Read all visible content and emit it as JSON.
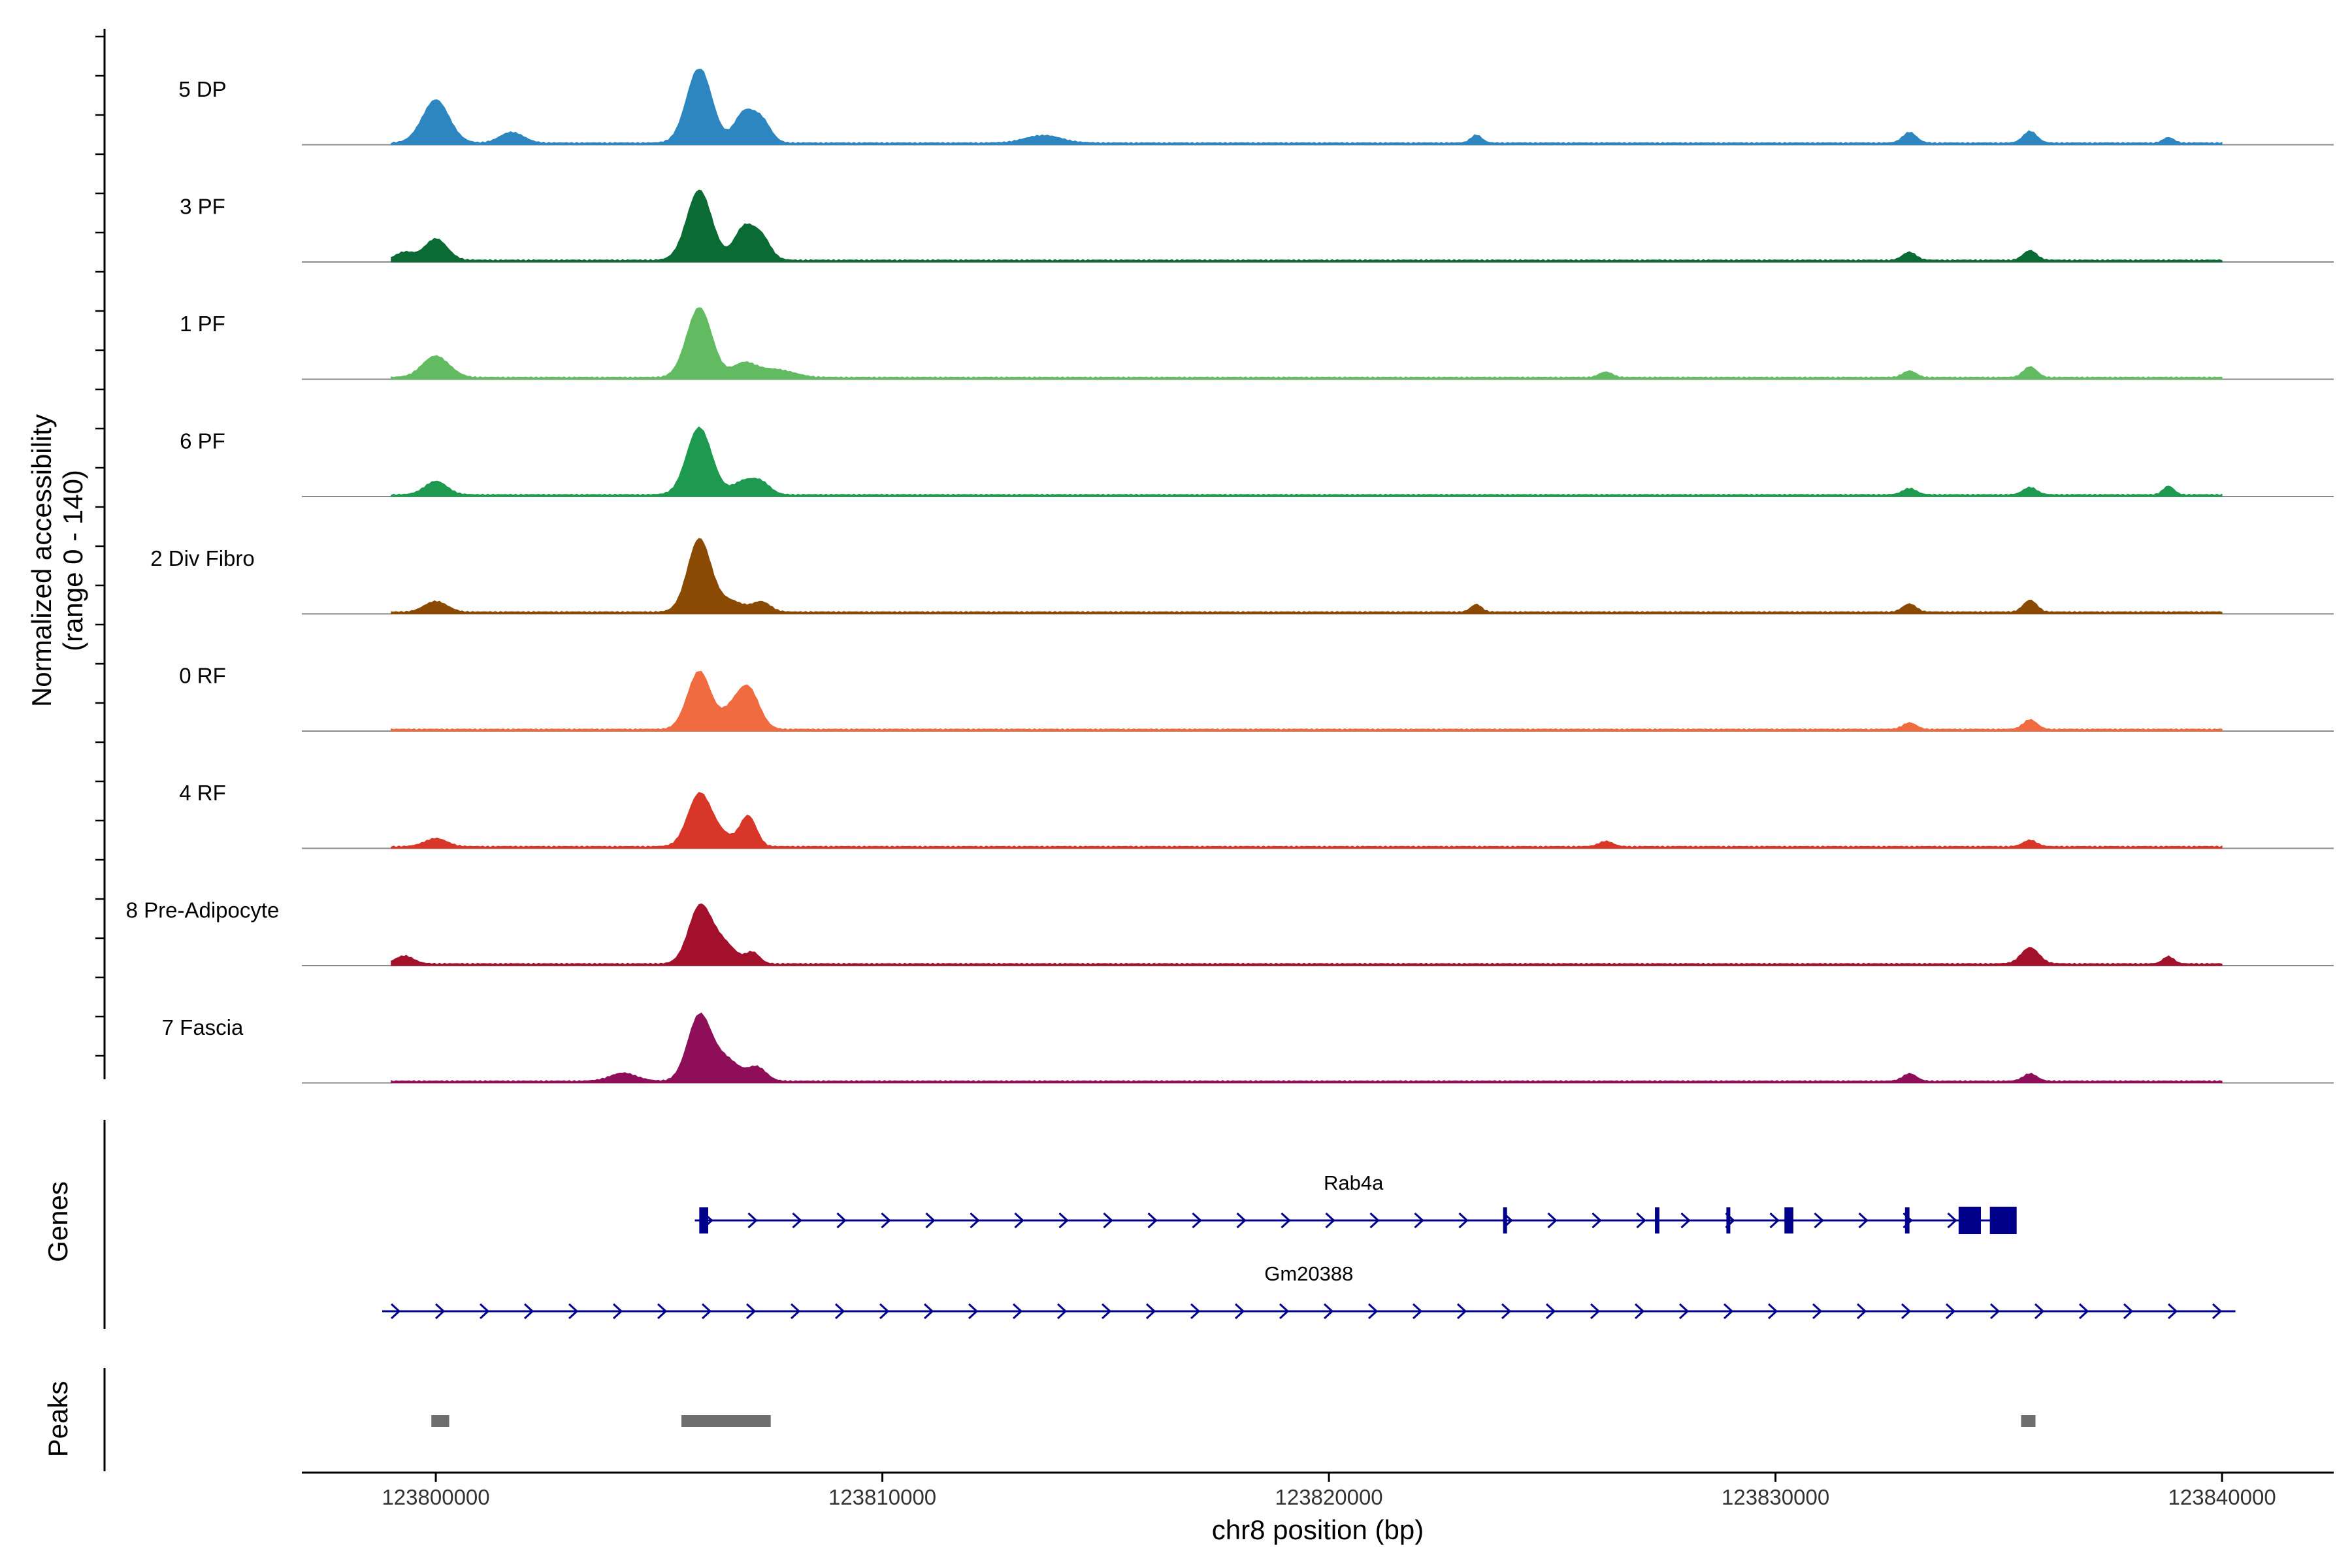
{
  "chart_data": {
    "type": "coverage_track",
    "x_axis": {
      "label": "chr8 position (bp)",
      "range": [
        123797000,
        123842500
      ],
      "ticks": [
        123800000,
        123810000,
        123820000,
        123830000,
        123840000
      ],
      "tick_labels": [
        "123800000",
        "123810000",
        "123820000",
        "123830000",
        "123840000"
      ]
    },
    "y_axis": {
      "label_line1": "Normalized accessibility",
      "label_line2": "(range 0 - 140)",
      "range": [
        0,
        140
      ]
    },
    "region": {
      "start": 123799000,
      "end": 123840000
    },
    "tracks": [
      {
        "name": "5 DP",
        "color": "#2E86C1",
        "peaks": [
          [
            123800000,
            80,
            300
          ],
          [
            123805900,
            140,
            280
          ],
          [
            123806900,
            55,
            220
          ],
          [
            123807300,
            40,
            200
          ],
          [
            123801700,
            20,
            260
          ],
          [
            123813600,
            14,
            400
          ],
          [
            123833000,
            20,
            150
          ],
          [
            123835700,
            22,
            150
          ],
          [
            123838800,
            10,
            120
          ],
          [
            123823300,
            15,
            120
          ]
        ]
      },
      {
        "name": "3 PF",
        "color": "#0B6B35",
        "peaks": [
          [
            123800000,
            40,
            250
          ],
          [
            123805900,
            130,
            280
          ],
          [
            123806900,
            60,
            220
          ],
          [
            123807300,
            40,
            200
          ],
          [
            123799300,
            15,
            200
          ],
          [
            123835700,
            18,
            150
          ],
          [
            123833000,
            15,
            150
          ]
        ]
      },
      {
        "name": "1 PF",
        "color": "#62BB60",
        "peaks": [
          [
            123800000,
            40,
            300
          ],
          [
            123805900,
            130,
            280
          ],
          [
            123806900,
            25,
            260
          ],
          [
            123807600,
            15,
            400
          ],
          [
            123835700,
            20,
            150
          ],
          [
            123833000,
            12,
            150
          ],
          [
            123826200,
            10,
            150
          ]
        ]
      },
      {
        "name": "6 PF",
        "color": "#1D9A50",
        "peaks": [
          [
            123800000,
            25,
            250
          ],
          [
            123805900,
            125,
            280
          ],
          [
            123806900,
            25,
            250
          ],
          [
            123807300,
            20,
            200
          ],
          [
            123838800,
            16,
            120
          ],
          [
            123833000,
            12,
            150
          ],
          [
            123835700,
            14,
            150
          ]
        ]
      },
      {
        "name": "2 Div Fibro",
        "color": "#8B4A04",
        "peaks": [
          [
            123800000,
            20,
            250
          ],
          [
            123805900,
            135,
            260
          ],
          [
            123806600,
            20,
            300
          ],
          [
            123807300,
            18,
            200
          ],
          [
            123835700,
            22,
            150
          ],
          [
            123833000,
            15,
            150
          ],
          [
            123823300,
            14,
            120
          ]
        ]
      },
      {
        "name": "0 RF",
        "color": "#F06B3F",
        "peaks": [
          [
            123805900,
            108,
            260
          ],
          [
            123806600,
            30,
            220
          ],
          [
            123807000,
            75,
            240
          ],
          [
            123835700,
            18,
            150
          ],
          [
            123833000,
            12,
            150
          ]
        ]
      },
      {
        "name": "4 RF",
        "color": "#D9362A",
        "peaks": [
          [
            123800000,
            15,
            250
          ],
          [
            123805900,
            95,
            260
          ],
          [
            123807000,
            55,
            180
          ],
          [
            123806400,
            20,
            300
          ],
          [
            123826200,
            10,
            150
          ],
          [
            123835700,
            12,
            150
          ]
        ]
      },
      {
        "name": "8 Pre-Adipocyte",
        "color": "#A3102C",
        "peaks": [
          [
            123805900,
            100,
            250
          ],
          [
            123806400,
            40,
            300
          ],
          [
            123807100,
            20,
            150
          ],
          [
            123835700,
            30,
            200
          ],
          [
            123838800,
            14,
            120
          ],
          [
            123799300,
            15,
            200
          ]
        ]
      },
      {
        "name": "7 Fascia",
        "color": "#8E0E5A",
        "peaks": [
          [
            123805900,
            120,
            260
          ],
          [
            123806500,
            40,
            300
          ],
          [
            123807200,
            25,
            200
          ],
          [
            123804200,
            15,
            300
          ],
          [
            123833000,
            14,
            150
          ],
          [
            123835700,
            14,
            150
          ]
        ]
      }
    ],
    "genes_track_label": "Genes",
    "genes": [
      {
        "name": "Rab4a",
        "start": 123805800,
        "end": 123835300,
        "strand": "+",
        "exons": [
          [
            123805900,
            123806100
          ],
          [
            123823900,
            123823950
          ],
          [
            123827300,
            123827400
          ],
          [
            123828900,
            123828940
          ],
          [
            123830200,
            123830400
          ],
          [
            123832900,
            123833000
          ],
          [
            123834100,
            123834600
          ],
          [
            123834800,
            123835400
          ]
        ]
      },
      {
        "name": "Gm20388",
        "start": 123798800,
        "end": 123840300,
        "strand": "+",
        "exons": []
      }
    ],
    "peaks_track_label": "Peaks",
    "peak_regions": [
      [
        123799900,
        123800300
      ],
      [
        123805500,
        123807500
      ],
      [
        123835500,
        123835800
      ]
    ]
  }
}
